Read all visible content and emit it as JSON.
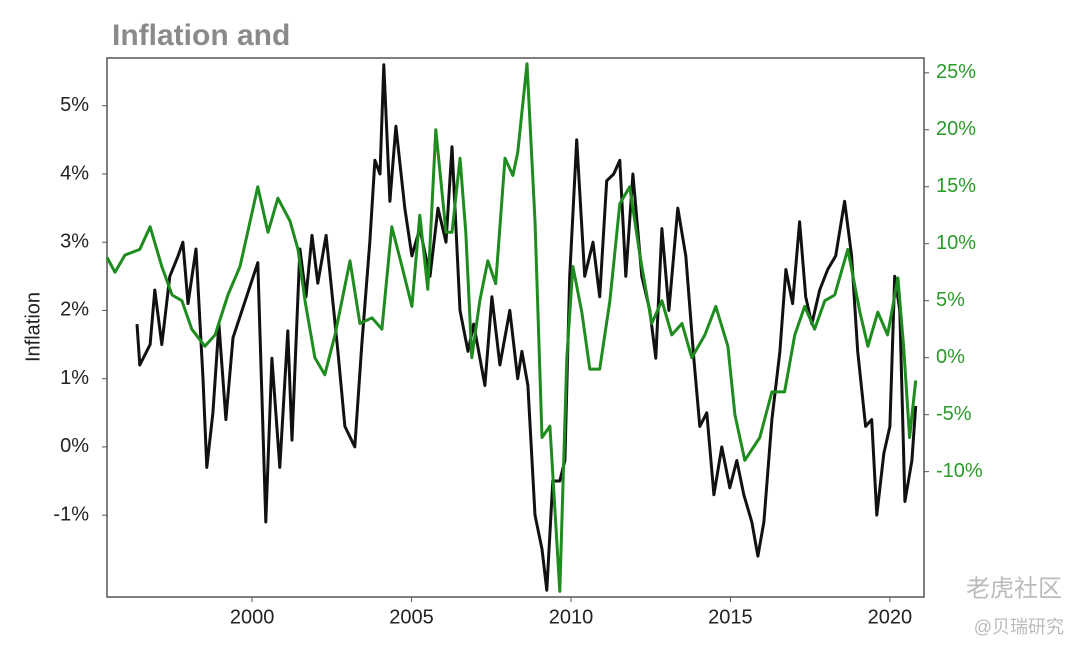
{
  "chart_data": {
    "type": "line",
    "title": "Inflation and",
    "ylabel": "Inflation",
    "watermarks": [
      "老虎社区",
      "@贝瑞研究"
    ],
    "xlim": [
      1995.45,
      2021.07
    ],
    "xticks": [
      2000,
      2005,
      2010,
      2015,
      2020
    ],
    "ylim": [
      -2.2,
      5.7
    ],
    "yticks": [
      {
        "value": -1,
        "label": "-1%"
      },
      {
        "value": 0,
        "label": "0%"
      },
      {
        "value": 1,
        "label": "1%"
      },
      {
        "value": 2,
        "label": "2%"
      },
      {
        "value": 3,
        "label": "3%"
      },
      {
        "value": 4,
        "label": "4%"
      },
      {
        "value": 5,
        "label": "5%"
      }
    ],
    "y2lim": [
      -21,
      26.3
    ],
    "y2ticks": [
      {
        "value": -10,
        "label": "-10%"
      },
      {
        "value": -5,
        "label": "-5%"
      },
      {
        "value": 0,
        "label": "0%"
      },
      {
        "value": 5,
        "label": "5%"
      },
      {
        "value": 10,
        "label": "10%"
      },
      {
        "value": 15,
        "label": "15%"
      },
      {
        "value": 20,
        "label": "20%"
      },
      {
        "value": 25,
        "label": "25%"
      }
    ],
    "series": [
      {
        "color": "#111111",
        "x": [
          1996.39,
          1996.48,
          1996.8,
          1996.95,
          1997.17,
          1997.42,
          1997.68,
          1997.83,
          1997.99,
          1998.24,
          1998.46,
          1998.58,
          1998.77,
          1998.96,
          1999.18,
          1999.4,
          2000.18,
          2000.43,
          2000.62,
          2000.87,
          2001.12,
          2001.25,
          2001.5,
          2001.69,
          2001.88,
          2002.06,
          2002.32,
          2002.69,
          2002.91,
          2003.22,
          2003.44,
          2003.69,
          2003.85,
          2004.01,
          2004.13,
          2004.32,
          2004.51,
          2004.79,
          2005.01,
          2005.26,
          2005.58,
          2005.83,
          2006.08,
          2006.27,
          2006.52,
          2006.77,
          2006.95,
          2007.3,
          2007.52,
          2007.77,
          2008.08,
          2008.33,
          2008.46,
          2008.65,
          2008.87,
          2009.09,
          2009.24,
          2009.43,
          2009.65,
          2009.81,
          2009.96,
          2010.18,
          2010.43,
          2010.69,
          2010.9,
          2011.12,
          2011.34,
          2011.53,
          2011.72,
          2011.94,
          2012.22,
          2012.47,
          2012.66,
          2012.85,
          2013.07,
          2013.35,
          2013.6,
          2013.85,
          2014.04,
          2014.26,
          2014.48,
          2014.73,
          2014.98,
          2015.2,
          2015.42,
          2015.67,
          2015.86,
          2016.05,
          2016.3,
          2016.55,
          2016.74,
          2016.95,
          2017.17,
          2017.36,
          2017.55,
          2017.8,
          2018.05,
          2018.3,
          2018.58,
          2018.8,
          2018.99,
          2019.24,
          2019.43,
          2019.59,
          2019.81,
          2020.0,
          2020.15,
          2020.31,
          2020.47,
          2020.69,
          2020.81
        ],
        "values": [
          1.8,
          1.2,
          1.5,
          2.3,
          1.5,
          2.5,
          2.8,
          3.0,
          2.1,
          2.9,
          1.0,
          -0.3,
          0.5,
          1.8,
          0.4,
          1.6,
          2.7,
          -1.1,
          1.3,
          -0.3,
          1.7,
          0.1,
          2.9,
          2.2,
          3.1,
          2.4,
          3.1,
          1.4,
          0.3,
          0.0,
          1.5,
          3.0,
          4.2,
          4.0,
          5.6,
          3.6,
          4.7,
          3.5,
          2.8,
          3.2,
          2.5,
          3.5,
          3.0,
          4.4,
          2.0,
          1.4,
          1.8,
          0.9,
          2.2,
          1.2,
          2.0,
          1.0,
          1.4,
          0.9,
          -1.0,
          -1.5,
          -2.1,
          -0.5,
          -0.5,
          -0.2,
          2.5,
          4.5,
          2.5,
          3.0,
          2.2,
          3.9,
          4.0,
          4.2,
          2.5,
          4.0,
          2.5,
          2.0,
          1.3,
          3.2,
          2.0,
          3.5,
          2.8,
          1.3,
          0.3,
          0.5,
          -0.7,
          0.0,
          -0.6,
          -0.2,
          -0.7,
          -1.1,
          -1.6,
          -1.1,
          0.4,
          1.4,
          2.6,
          2.1,
          3.3,
          2.2,
          1.8,
          2.3,
          2.6,
          2.8,
          3.6,
          2.8,
          1.4,
          0.3,
          0.4,
          -1.0,
          -0.1,
          0.3,
          2.5,
          2.0,
          -0.8,
          -0.2,
          0.6
        ]
      },
      {
        "color": "#1e8c1e",
        "axis": "y2",
        "x": [
          1995.45,
          1995.7,
          1996.01,
          1996.48,
          1996.8,
          1997.17,
          1997.49,
          1997.8,
          1998.11,
          1998.52,
          1998.84,
          1999.24,
          1999.62,
          2000.18,
          2000.5,
          2000.81,
          2001.19,
          2001.44,
          2001.66,
          2001.97,
          2002.28,
          2002.6,
          2003.07,
          2003.38,
          2003.76,
          2004.07,
          2004.38,
          2004.7,
          2005.01,
          2005.26,
          2005.51,
          2005.76,
          2006.08,
          2006.27,
          2006.52,
          2006.7,
          2006.89,
          2007.14,
          2007.39,
          2007.64,
          2007.93,
          2008.18,
          2008.33,
          2008.62,
          2008.87,
          2009.09,
          2009.34,
          2009.65,
          2009.87,
          2010.06,
          2010.34,
          2010.59,
          2010.9,
          2011.22,
          2011.53,
          2011.84,
          2012.16,
          2012.53,
          2012.85,
          2013.16,
          2013.48,
          2013.79,
          2014.2,
          2014.54,
          2014.92,
          2015.14,
          2015.45,
          2015.92,
          2016.3,
          2016.7,
          2017.02,
          2017.33,
          2017.64,
          2017.96,
          2018.27,
          2018.68,
          2019.06,
          2019.31,
          2019.62,
          2019.93,
          2020.25,
          2020.43,
          2020.62,
          2020.81
        ],
        "values": [
          8.8,
          7.5,
          9.0,
          9.5,
          11.5,
          8.0,
          5.5,
          5.0,
          2.5,
          1.0,
          2.0,
          5.5,
          8.0,
          15.0,
          11.0,
          14.0,
          12.0,
          9.5,
          5.0,
          0.0,
          -1.5,
          2.0,
          8.5,
          3.0,
          3.5,
          2.5,
          11.5,
          8.0,
          4.5,
          12.5,
          6.0,
          20.0,
          11.0,
          11.0,
          17.5,
          11.0,
          0.0,
          5.0,
          8.5,
          6.5,
          17.5,
          16.0,
          18.0,
          25.8,
          12.0,
          -7.0,
          -6.0,
          -20.5,
          0.0,
          8.0,
          4.0,
          -1.0,
          -1.0,
          5.0,
          13.5,
          15.0,
          9.0,
          3.0,
          5.0,
          2.0,
          3.0,
          0.0,
          2.0,
          4.5,
          1.0,
          -5.0,
          -9.0,
          -7.0,
          -3.0,
          -3.0,
          2.0,
          4.5,
          2.5,
          5.0,
          5.5,
          9.5,
          4.0,
          1.0,
          4.0,
          2.0,
          7.0,
          1.0,
          -7.0,
          -2.0
        ]
      }
    ]
  }
}
